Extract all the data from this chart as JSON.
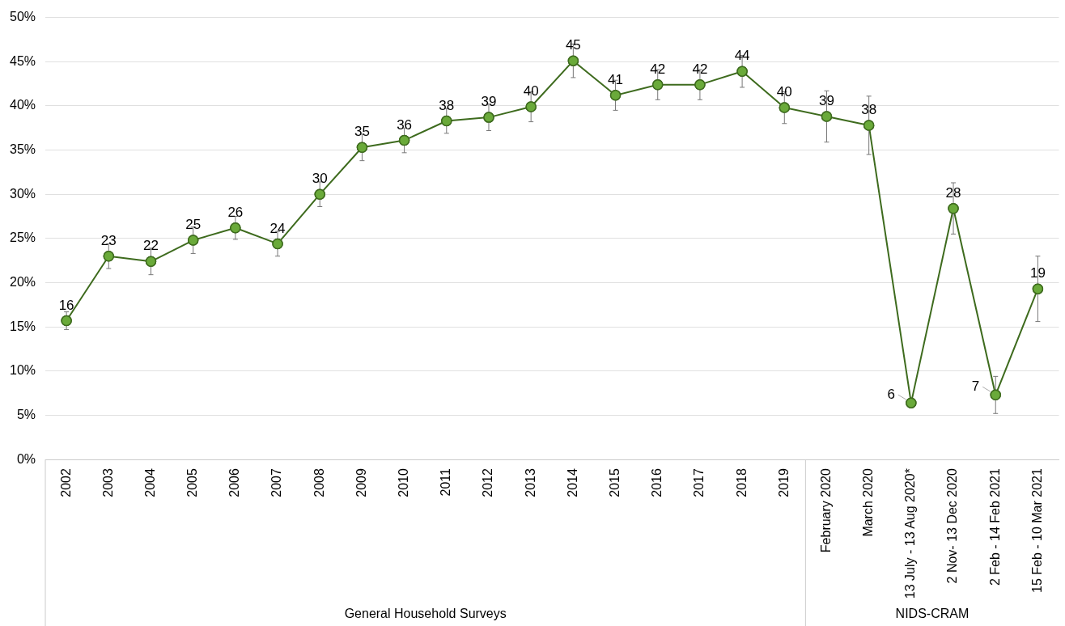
{
  "chart_data": {
    "type": "line",
    "categories": [
      "2002",
      "2003",
      "2004",
      "2005",
      "2006",
      "2007",
      "2008",
      "2009",
      "2010",
      "2011",
      "2012",
      "2013",
      "2014",
      "2015",
      "2016",
      "2017",
      "2018",
      "2019",
      "February 2020",
      "March 2020",
      "13 July - 13 Aug 2020*",
      "2 Nov- 13 Dec 2020",
      "2 Feb - 14 Feb 2021",
      "15 Feb - 10 Mar 2021"
    ],
    "series": [
      {
        "color": "#3e6b1e",
        "values": [
          15.7,
          23.0,
          22.4,
          24.8,
          26.2,
          24.4,
          30.0,
          35.3,
          36.1,
          38.3,
          38.7,
          39.9,
          45.1,
          41.2,
          42.4,
          42.4,
          43.9,
          39.8,
          38.8,
          37.8,
          6.4,
          28.4,
          7.3,
          19.3
        ],
        "errors": [
          1.0,
          1.4,
          1.5,
          1.5,
          1.3,
          1.4,
          1.4,
          1.5,
          1.4,
          1.4,
          1.5,
          1.7,
          1.9,
          1.7,
          1.7,
          1.7,
          1.8,
          1.8,
          2.9,
          3.3,
          null,
          2.9,
          2.1,
          3.7
        ],
        "value_labels": [
          "16",
          "23",
          "22",
          "25",
          "26",
          "24",
          "30",
          "35",
          "36",
          "38",
          "39",
          "40",
          "45",
          "41",
          "42",
          "42",
          "44",
          "40",
          "39",
          "38",
          "6",
          "28",
          "7",
          "19"
        ]
      }
    ],
    "ylim": [
      0,
      50
    ],
    "yticks": [
      {
        "value": 0,
        "label": "0%"
      },
      {
        "value": 5,
        "label": "5%"
      },
      {
        "value": 10,
        "label": "10%"
      },
      {
        "value": 15,
        "label": "15%"
      },
      {
        "value": 20,
        "label": "20%"
      },
      {
        "value": 25,
        "label": "25%"
      },
      {
        "value": 30,
        "label": "30%"
      },
      {
        "value": 35,
        "label": "35%"
      },
      {
        "value": 40,
        "label": "40%"
      },
      {
        "value": 45,
        "label": "45%"
      },
      {
        "value": 50,
        "label": "50%"
      }
    ],
    "grid": "y",
    "legend": false,
    "marker": "circle",
    "line_style": "solid",
    "annotations": [
      "General Household Surveys",
      "NIDS-CRAM"
    ]
  }
}
